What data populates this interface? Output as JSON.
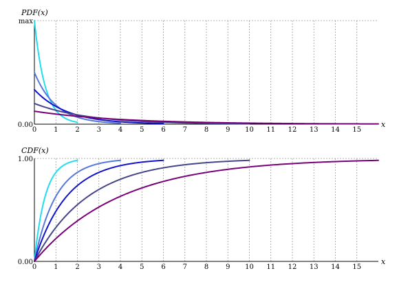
{
  "chart_data": [
    {
      "type": "line",
      "title": "",
      "ylabel": "PDF(x)",
      "xlabel": "x",
      "xlim": [
        0,
        16
      ],
      "xticks": [
        "0",
        "1",
        "2",
        "3",
        "4",
        "5",
        "6",
        "7",
        "8",
        "9",
        "10",
        "11",
        "12",
        "13",
        "14",
        "15"
      ],
      "yticks": [
        "0.00",
        "max"
      ],
      "ylim": [
        0,
        2
      ],
      "grid": true,
      "series": [
        {
          "rate": 2,
          "xmax": 2,
          "color": "#22ddee"
        },
        {
          "rate": 1,
          "xmax": 4,
          "color": "#5577dd"
        },
        {
          "rate": 0.6667,
          "xmax": 6,
          "color": "#1111cc"
        },
        {
          "rate": 0.4,
          "xmax": 10,
          "color": "#444488"
        },
        {
          "rate": 0.25,
          "xmax": 16,
          "color": "#770077"
        }
      ]
    },
    {
      "type": "line",
      "title": "",
      "ylabel": "CDF(x)",
      "xlabel": "x",
      "xlim": [
        0,
        16
      ],
      "xticks": [
        "0",
        "1",
        "2",
        "3",
        "4",
        "5",
        "6",
        "7",
        "8",
        "9",
        "10",
        "11",
        "12",
        "13",
        "14",
        "15"
      ],
      "yticks": [
        "0.00",
        "1.00"
      ],
      "ylim": [
        0,
        1
      ],
      "grid": true,
      "series": [
        {
          "rate": 2,
          "xmax": 2,
          "color": "#22ddee"
        },
        {
          "rate": 1,
          "xmax": 4,
          "color": "#5577dd"
        },
        {
          "rate": 0.6667,
          "xmax": 6,
          "color": "#1111cc"
        },
        {
          "rate": 0.4,
          "xmax": 10,
          "color": "#444488"
        },
        {
          "rate": 0.25,
          "xmax": 16,
          "color": "#770077"
        }
      ]
    }
  ]
}
